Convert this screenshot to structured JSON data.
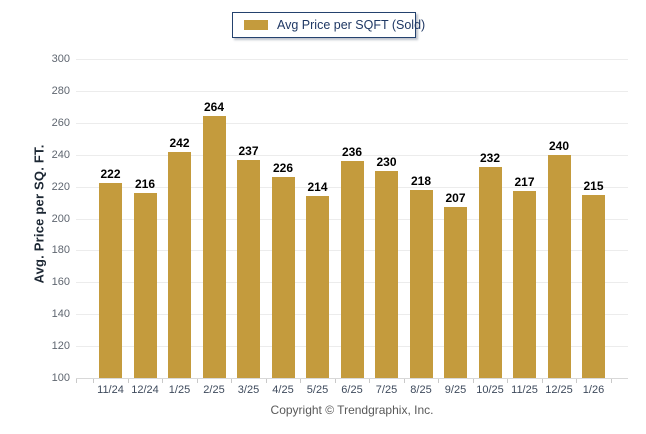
{
  "page": {
    "background": "#ffffff"
  },
  "legend": {
    "label": "Avg Price per SQFT (Sold)",
    "swatch_color": "#C49B3D",
    "border_color": "#24426E",
    "text_color": "#1F3864"
  },
  "footer": {
    "copyright": "Copyright © Trendgraphix, Inc."
  },
  "chart_data": {
    "type": "bar",
    "title": "",
    "series_name": "Avg Price per SQFT (Sold)",
    "categories": [
      "11/24",
      "12/24",
      "1/25",
      "2/25",
      "3/25",
      "4/25",
      "5/25",
      "6/25",
      "7/25",
      "8/25",
      "9/25",
      "10/25",
      "11/25",
      "12/25",
      "1/26"
    ],
    "values": [
      222,
      216,
      242,
      264,
      237,
      226,
      214,
      236,
      230,
      218,
      207,
      232,
      217,
      240,
      215
    ],
    "xlabel": "",
    "ylabel": "Avg. Price per SQ. FT.",
    "ylim": [
      100,
      300
    ],
    "ytick_step": 20,
    "bar_color": "#C49B3D",
    "grid": true,
    "value_labels": true,
    "legend_position": "top-center"
  }
}
